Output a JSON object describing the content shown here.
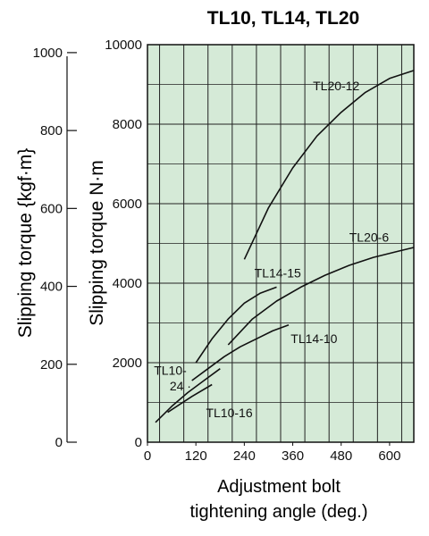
{
  "chart_data": {
    "type": "line",
    "title": "TL10, TL14, TL20",
    "xlabel_line1": "Adjustment bolt",
    "xlabel_line2": "tightening angle (deg.)",
    "ylabel": "Slipping torque N·m",
    "ylabel_secondary": "Slipping torque {kgf·m}",
    "xlim": [
      0,
      660
    ],
    "ylim": [
      0,
      10000
    ],
    "x_ticks": [
      0,
      120,
      240,
      360,
      480,
      600
    ],
    "x_tick_labels": [
      "0",
      "120",
      "240",
      "360",
      "480",
      "600"
    ],
    "y_ticks": [
      0,
      2000,
      4000,
      6000,
      8000,
      10000
    ],
    "y_tick_labels": [
      "0",
      "2000",
      "4000",
      "6000",
      "8000",
      "10000"
    ],
    "secondary_ticks": [
      0,
      200,
      400,
      600,
      800,
      1000
    ],
    "secondary_tick_labels": [
      "0",
      "200",
      "400",
      "600",
      "800",
      "1000"
    ],
    "grid": true,
    "plot_background": "#d5ead7",
    "line_color": "#111111",
    "series": [
      {
        "name": "TL20-12",
        "x": [
          240,
          300,
          360,
          420,
          480,
          540,
          600,
          660
        ],
        "y": [
          4600,
          5900,
          6900,
          7700,
          8300,
          8800,
          9150,
          9350
        ]
      },
      {
        "name": "TL20-6",
        "x": [
          200,
          260,
          320,
          380,
          440,
          500,
          560,
          620,
          660
        ],
        "y": [
          2450,
          3100,
          3550,
          3900,
          4200,
          4450,
          4650,
          4800,
          4900
        ]
      },
      {
        "name": "TL14-15",
        "x": [
          120,
          160,
          200,
          240,
          280,
          320
        ],
        "y": [
          2000,
          2600,
          3100,
          3500,
          3750,
          3900
        ]
      },
      {
        "name": "TL14-10",
        "x": [
          110,
          150,
          190,
          230,
          270,
          310,
          350
        ],
        "y": [
          1550,
          1850,
          2150,
          2400,
          2600,
          2800,
          2950
        ]
      },
      {
        "name": "TL10-24",
        "x": [
          20,
          60,
          100,
          140,
          180
        ],
        "y": [
          500,
          900,
          1250,
          1550,
          1850
        ]
      },
      {
        "name": "TL10-16",
        "x": [
          50,
          80,
          110,
          160
        ],
        "y": [
          750,
          950,
          1150,
          1450
        ]
      }
    ],
    "series_labels": [
      {
        "text": "TL20-12",
        "x": 410,
        "y": 8850
      },
      {
        "text": "TL20-6",
        "x": 500,
        "y": 5050
      },
      {
        "text": "TL14-15",
        "x": 265,
        "y": 4150
      },
      {
        "text": "TL14-10",
        "x": 355,
        "y": 2500
      },
      {
        "text": "TL10-",
        "x": 16,
        "y": 1700
      },
      {
        "text": "24 ·",
        "x": 55,
        "y": 1300
      },
      {
        "text": "TL10-16",
        "x": 145,
        "y": 630
      }
    ]
  }
}
